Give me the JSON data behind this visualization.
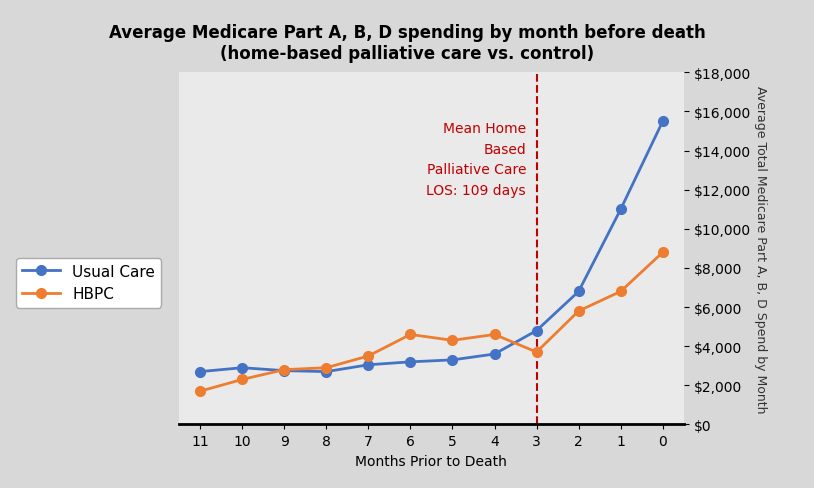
{
  "title_line1": "Average Medicare Part A, B, D spending by month before death",
  "title_line2": "(home-based palliative care vs. control)",
  "xlabel": "Months Prior to Death",
  "ylabel_right": "Average Total Medicare Part A, B, D Spend by Month",
  "x_labels": [
    11,
    10,
    9,
    8,
    7,
    6,
    5,
    4,
    3,
    2,
    1,
    0
  ],
  "usual_care": [
    2700,
    2900,
    2750,
    2700,
    3050,
    3200,
    3300,
    3600,
    4800,
    6800,
    11000,
    15500
  ],
  "hbpc": [
    1700,
    2300,
    2800,
    2900,
    3500,
    4600,
    4300,
    4600,
    3700,
    5800,
    6800,
    8800
  ],
  "usual_care_color": "#4472C4",
  "hbpc_color": "#ED7D31",
  "plot_bg_color": "#EAEAEA",
  "fig_bg_color": "#D8D8D8",
  "vline_x_idx": 8,
  "vline_color": "#C00000",
  "annotation_text": "Mean Home\nBased\nPalliative Care\nLOS: 109 days",
  "annotation_color": "#C00000",
  "ylim": [
    0,
    18000
  ],
  "yticks": [
    0,
    2000,
    4000,
    6000,
    8000,
    10000,
    12000,
    14000,
    16000,
    18000
  ],
  "legend_usual_care": "Usual Care",
  "legend_hbpc": "HBPC",
  "title_fontsize": 12,
  "label_fontsize": 10,
  "tick_fontsize": 10,
  "legend_fontsize": 11,
  "annotation_fontsize": 10
}
